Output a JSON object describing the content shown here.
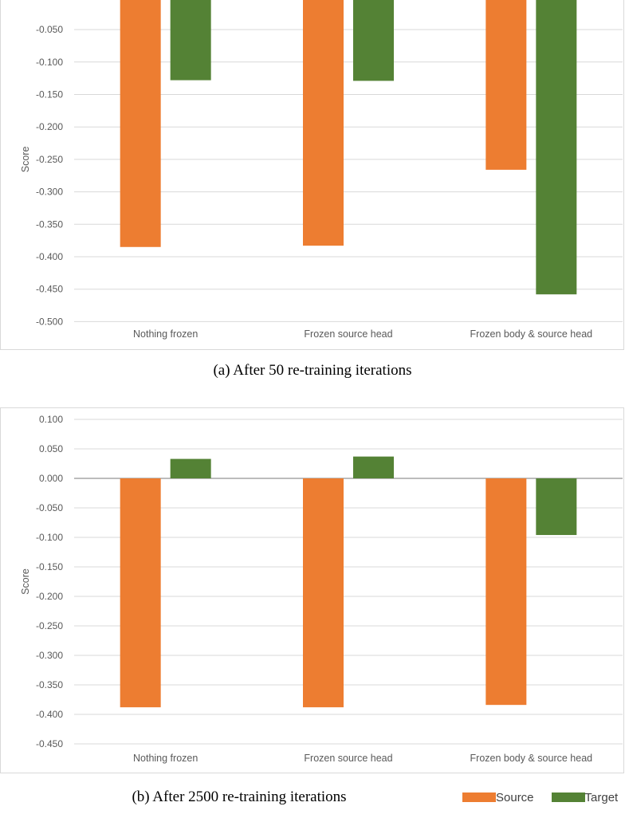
{
  "chart_data": [
    {
      "type": "bar",
      "caption": "(a) After 50 re-training iterations",
      "ylabel": "Score",
      "categories": [
        "Nothing frozen",
        "Frozen source head",
        "Frozen body & source head"
      ],
      "ylim": [
        -0.5,
        0.0
      ],
      "yticks": [
        "-0.050",
        "-0.100",
        "-0.150",
        "-0.200",
        "-0.250",
        "-0.300",
        "-0.350",
        "-0.400",
        "-0.450",
        "-0.500"
      ],
      "ytick_values": [
        -0.05,
        -0.1,
        -0.15,
        -0.2,
        -0.25,
        -0.3,
        -0.35,
        -0.4,
        -0.45,
        -0.5
      ],
      "grid": true,
      "series": [
        {
          "name": "Source",
          "color": "#ED7D31",
          "values": [
            -0.385,
            -0.383,
            -0.266
          ]
        },
        {
          "name": "Target",
          "color": "#548235",
          "values": [
            -0.128,
            -0.129,
            -0.458
          ]
        }
      ]
    },
    {
      "type": "bar",
      "caption": "(b) After 2500 re-training iterations",
      "ylabel": "Score",
      "categories": [
        "Nothing frozen",
        "Frozen source head",
        "Frozen body & source head"
      ],
      "ylim": [
        -0.45,
        0.1
      ],
      "yticks": [
        "0.100",
        "0.050",
        "0.000",
        "-0.050",
        "-0.100",
        "-0.150",
        "-0.200",
        "-0.250",
        "-0.300",
        "-0.350",
        "-0.400",
        "-0.450"
      ],
      "ytick_values": [
        0.1,
        0.05,
        0.0,
        -0.05,
        -0.1,
        -0.15,
        -0.2,
        -0.25,
        -0.3,
        -0.35,
        -0.4,
        -0.45
      ],
      "grid": true,
      "series": [
        {
          "name": "Source",
          "color": "#ED7D31",
          "values": [
            -0.388,
            -0.388,
            -0.384
          ]
        },
        {
          "name": "Target",
          "color": "#548235",
          "values": [
            0.033,
            0.037,
            -0.096
          ]
        }
      ],
      "legend": {
        "placement": "bottom-right"
      }
    }
  ],
  "legend": {
    "source_label": "Source",
    "target_label": "Target",
    "source_color": "#ED7D31",
    "target_color": "#548235"
  }
}
